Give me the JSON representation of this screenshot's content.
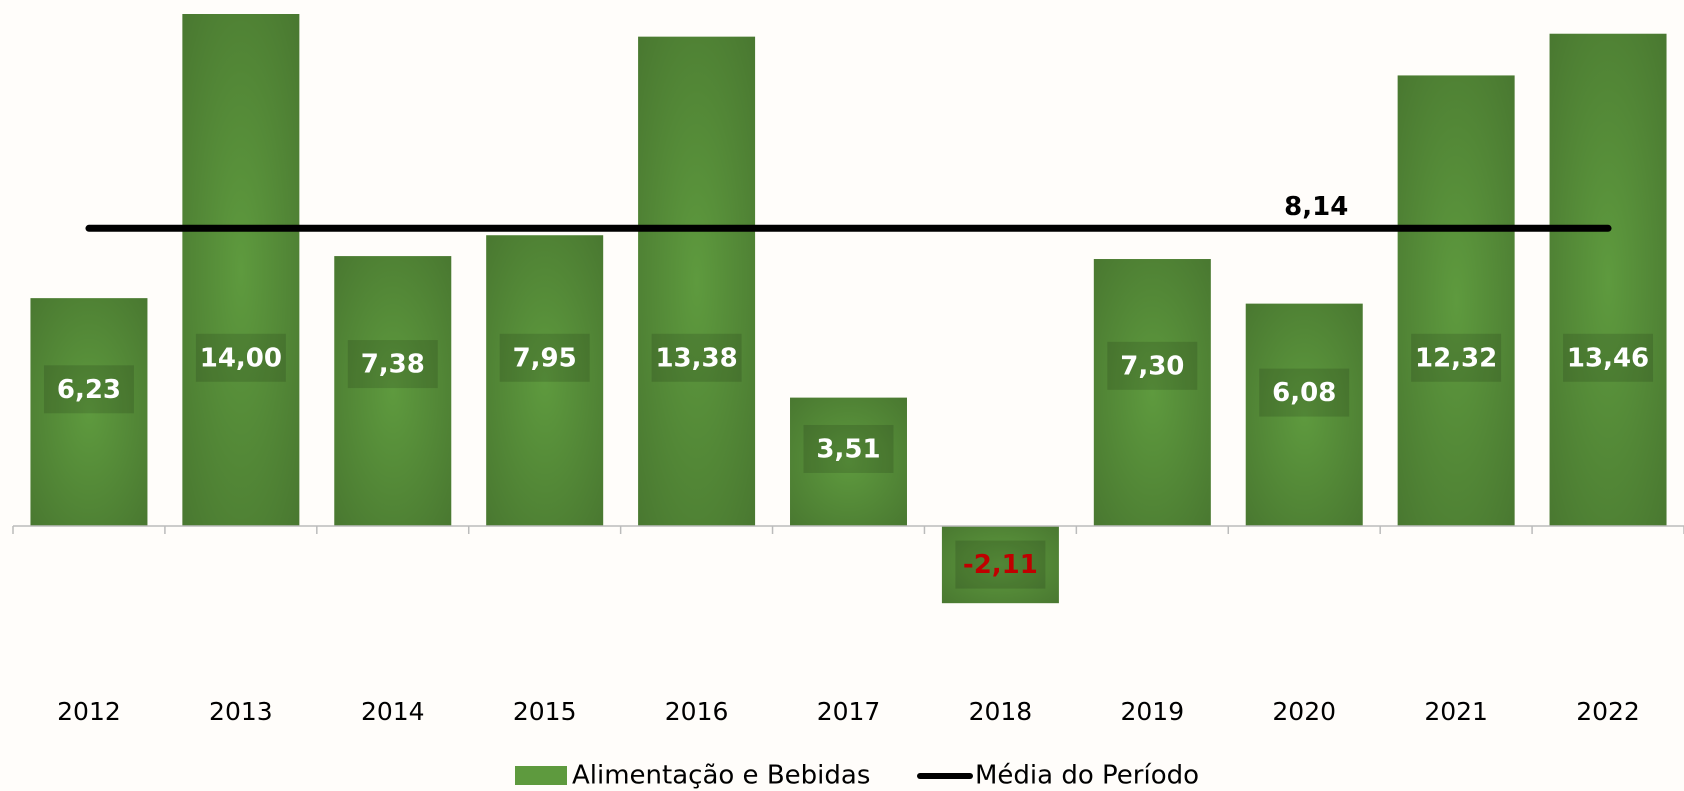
{
  "chart_data": {
    "type": "bar",
    "categories": [
      "2012",
      "2013",
      "2014",
      "2015",
      "2016",
      "2017",
      "2018",
      "2019",
      "2020",
      "2021",
      "2022"
    ],
    "series": [
      {
        "name": "Alimentação e Bebidas",
        "color": "#5e9a3e",
        "values": [
          6.23,
          14.0,
          7.38,
          7.95,
          13.38,
          3.51,
          -2.11,
          7.3,
          6.08,
          12.32,
          13.46
        ],
        "value_labels": [
          "6,23",
          "14,00",
          "7,38",
          "7,95",
          "13,38",
          "3,51",
          "-2,11",
          "7,30",
          "6,08",
          "12,32",
          "13,46"
        ],
        "label_color": "#ffffff",
        "negative_label_color": "#c00000"
      }
    ],
    "average": {
      "name": "Média do Período",
      "value": 8.14,
      "value_label": "8,14",
      "color": "#000000"
    }
  }
}
